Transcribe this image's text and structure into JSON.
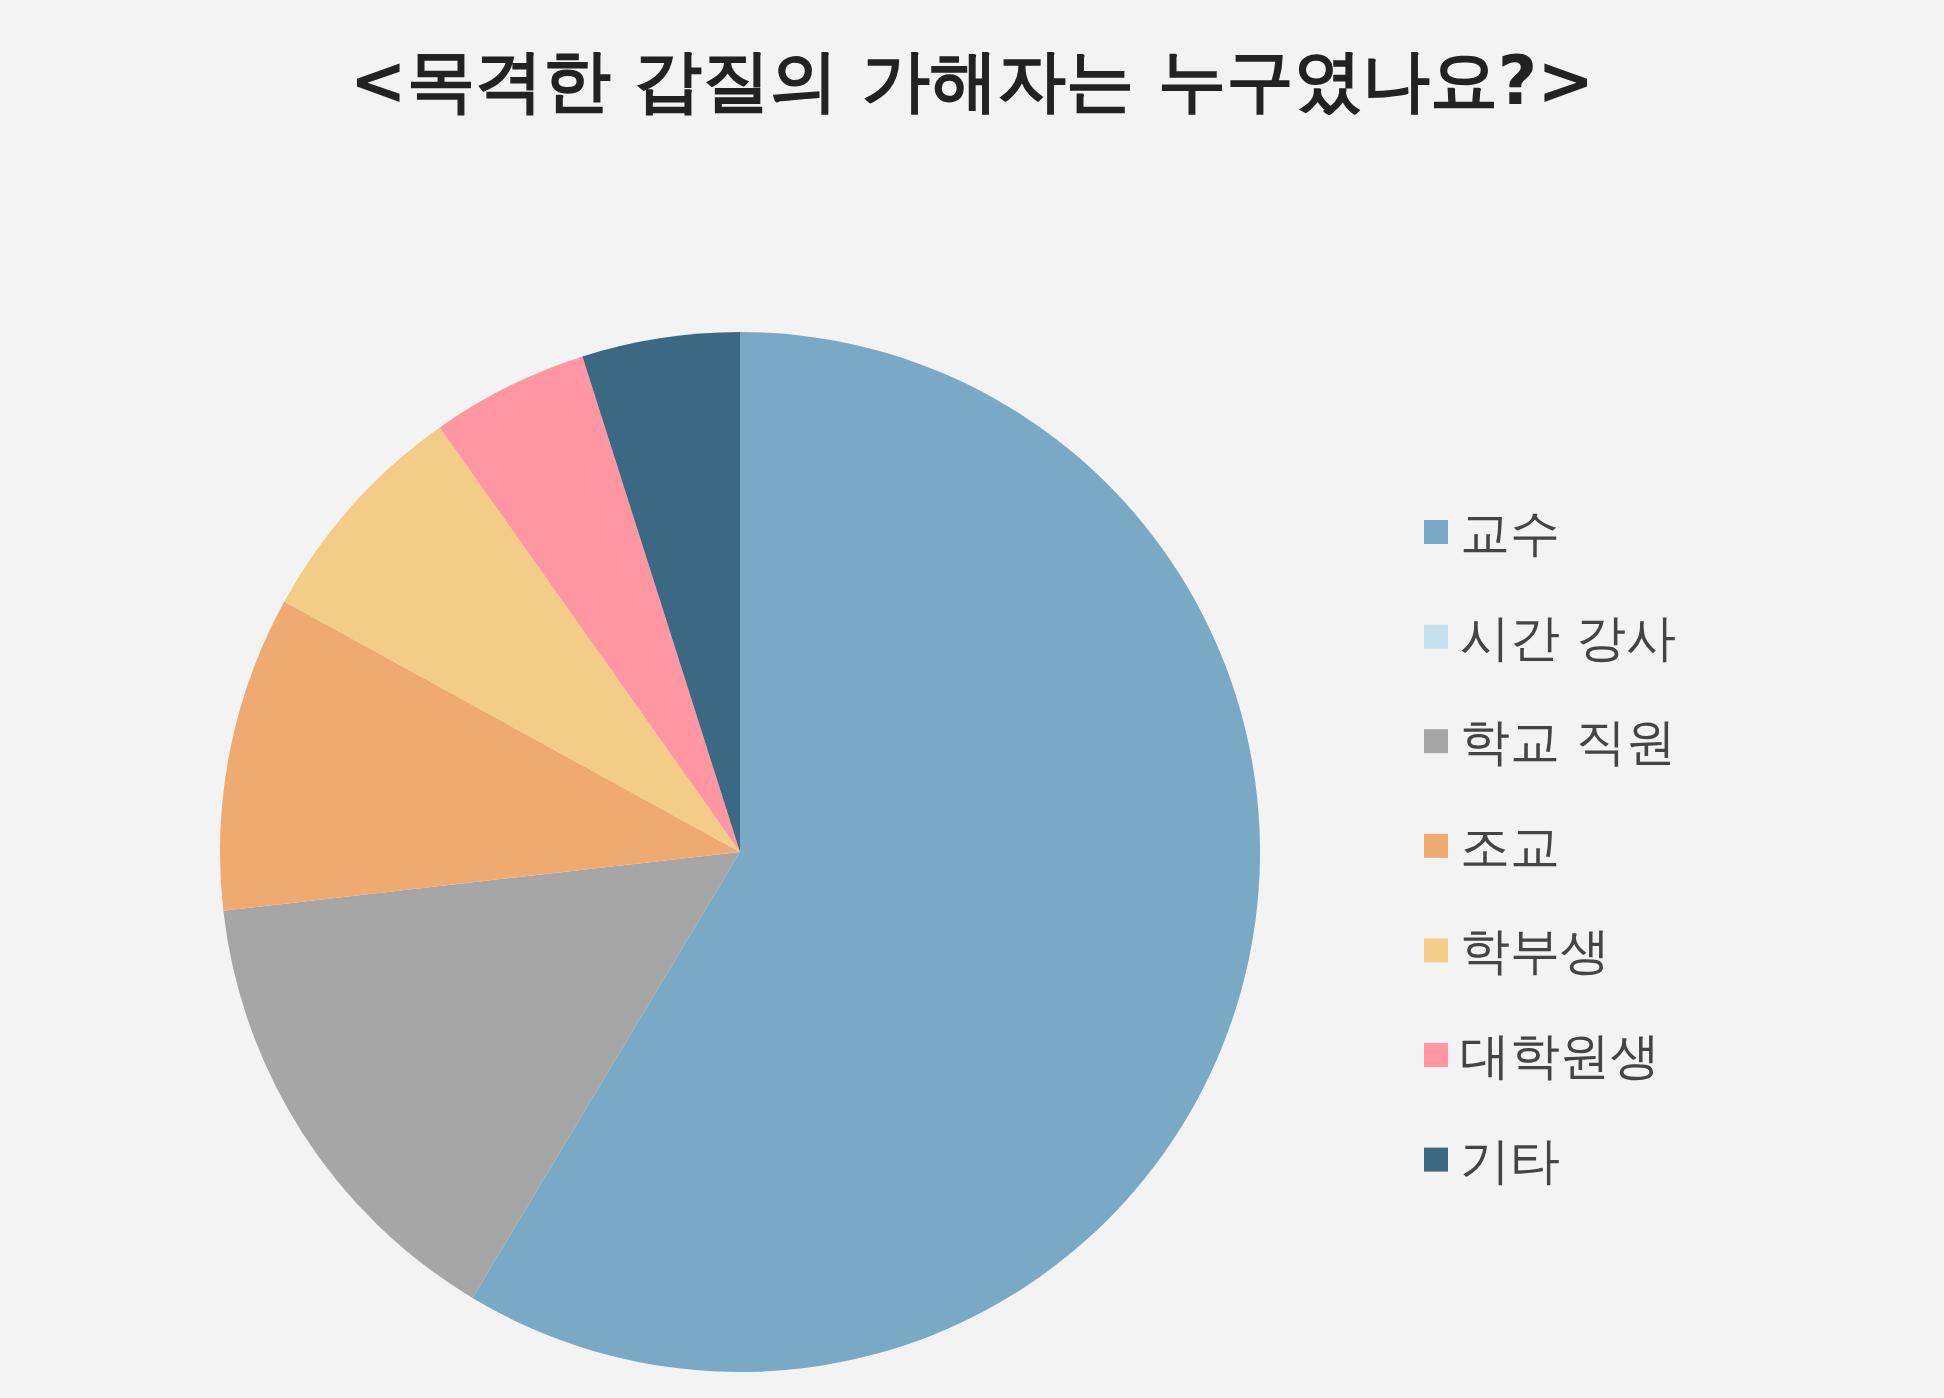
{
  "chart_data": {
    "type": "pie",
    "title": "<목격한 갑질의 가해자는 누구였나요?>",
    "categories": [
      "교수",
      "시간 강사",
      "학교 직원",
      "조교",
      "학부생",
      "대학원생",
      "기타"
    ],
    "values": [
      58.6,
      0,
      14.6,
      9.8,
      7.2,
      4.9,
      4.9
    ],
    "colors": [
      "#79a9c4",
      "#c5e0f0",
      "#a6a6a6",
      "#efaa72",
      "#f3cc88",
      "#ff96a1",
      "#3b6882"
    ],
    "legend": "right"
  }
}
